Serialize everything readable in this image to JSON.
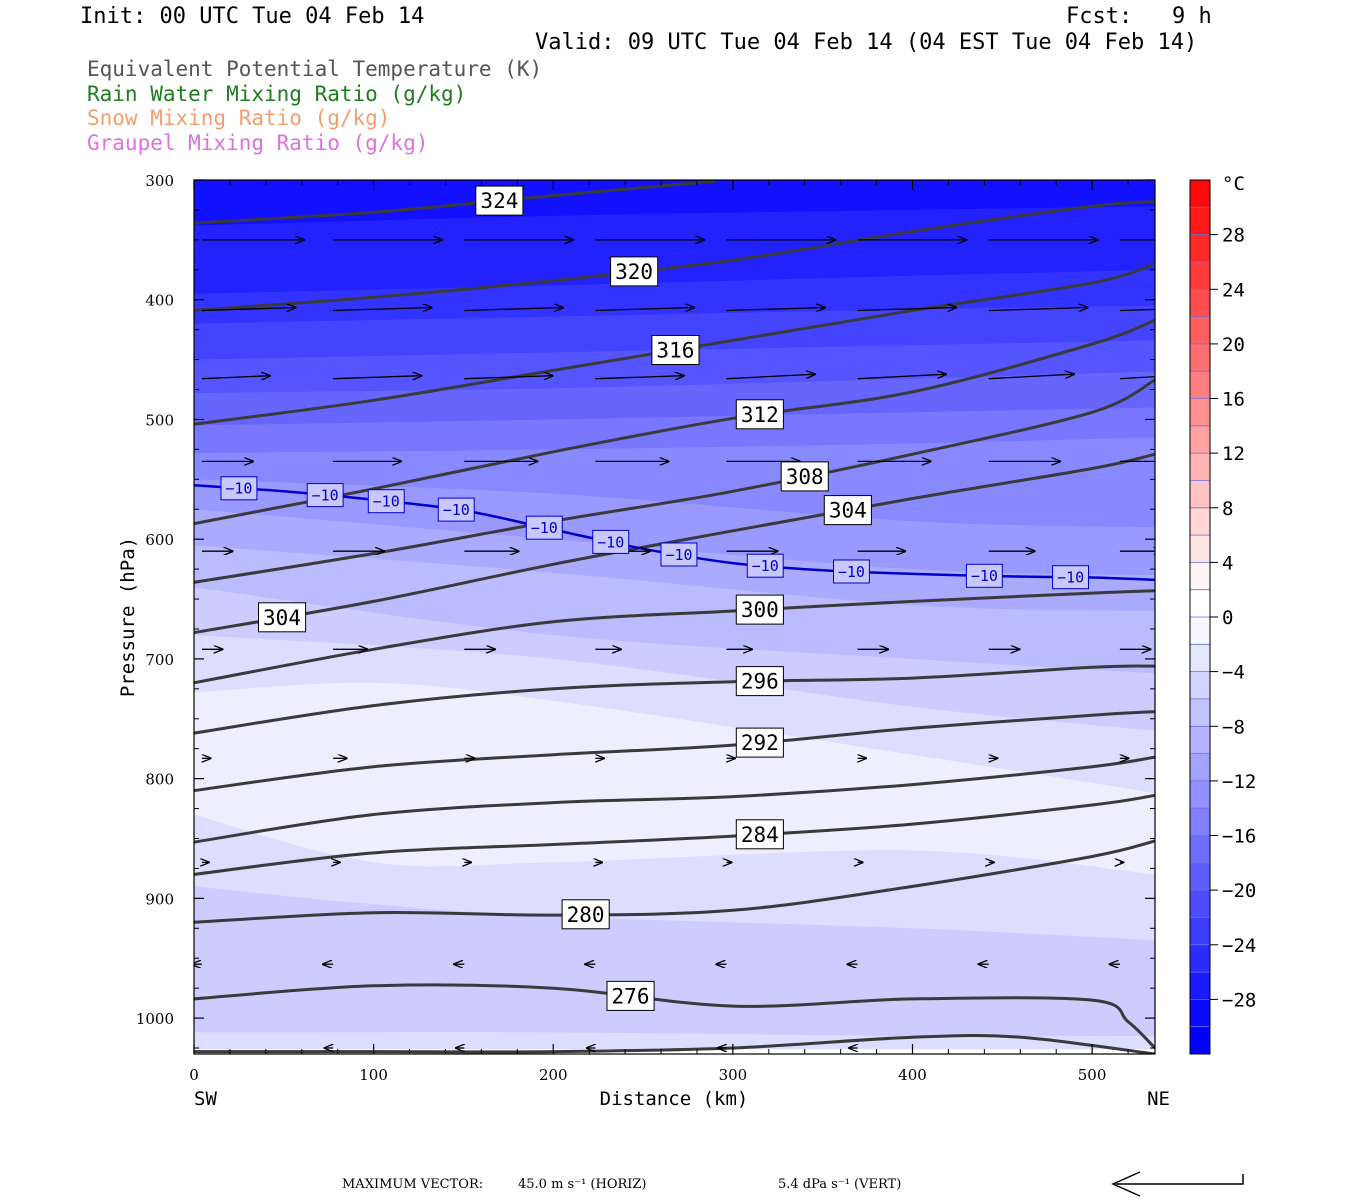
{
  "header": {
    "init": "Init: 00 UTC Tue 04 Feb 14",
    "fcst": "Fcst:   9 h",
    "valid": "Valid: 09 UTC Tue 04 Feb 14 (04 EST Tue 04 Feb 14)"
  },
  "legend": [
    {
      "text": "Equivalent Potential Temperature (K)",
      "color": "#555555"
    },
    {
      "text": "Rain Water Mixing Ratio (g/kg)",
      "color": "#1e7d1e"
    },
    {
      "text": "Snow Mixing Ratio (g/kg)",
      "color": "#f0a070"
    },
    {
      "text": "Graupel Mixing Ratio (g/kg)",
      "color": "#e070e0"
    }
  ],
  "footer": {
    "max_vector_label": "MAXIMUM VECTOR:",
    "horiz": "45.0 m s⁻¹ (HORIZ)",
    "vert": "5.4 dPa s⁻¹ (VERT)"
  },
  "chart_data": {
    "type": "contour cross-section",
    "xlabel": "Distance (km)",
    "ylabel": "Pressure (hPa)",
    "x_ticks": [
      0,
      100,
      200,
      300,
      400,
      500
    ],
    "xlim": [
      0,
      535
    ],
    "x_end_labels": {
      "left": "SW",
      "right": "NE"
    },
    "y_ticks": [
      300,
      400,
      500,
      600,
      700,
      800,
      900,
      1000
    ],
    "ylim": [
      300,
      1030
    ],
    "y_scale": "linear",
    "colorbar": {
      "unit": "°C",
      "tick_labels": [
        "28",
        "24",
        "20",
        "16",
        "12",
        "8",
        "4",
        "0",
        "−4",
        "−8",
        "−12",
        "−16",
        "−20",
        "−24",
        "−28"
      ],
      "tick_values": [
        28,
        24,
        20,
        16,
        12,
        8,
        4,
        0,
        -4,
        -8,
        -12,
        -16,
        -20,
        -24,
        -28
      ],
      "range": [
        -32,
        32
      ],
      "step": 2
    },
    "temperature_contour_minus10": {
      "label": "−10",
      "x": [
        0,
        50,
        100,
        150,
        200,
        250,
        300,
        350,
        400,
        450,
        500,
        535
      ],
      "p": [
        555,
        560,
        567,
        576,
        592,
        608,
        620,
        626,
        629,
        631,
        632,
        634
      ],
      "label_x": [
        25,
        73,
        107,
        146,
        195,
        232,
        270,
        318,
        366,
        440,
        488
      ]
    },
    "theta_e_contours": [
      {
        "value": 324,
        "x": [
          0,
          100,
          200,
          290
        ],
        "p": [
          336,
          327,
          313,
          301
        ],
        "label_x": [
          170
        ]
      },
      {
        "value": 320,
        "x": [
          0,
          100,
          200,
          300,
          400,
          500,
          535
        ],
        "p": [
          409,
          398,
          384,
          367,
          343,
          322,
          318
        ],
        "label_x": [
          245
        ]
      },
      {
        "value": 316,
        "x": [
          0,
          100,
          200,
          300,
          400,
          500,
          535
        ],
        "p": [
          504,
          484,
          459,
          434,
          409,
          386,
          370
        ],
        "label_x": [
          268
        ]
      },
      {
        "value": 312,
        "x": [
          0,
          100,
          200,
          300,
          400,
          500,
          535
        ],
        "p": [
          587,
          558,
          527,
          499,
          477,
          437,
          417
        ],
        "label_x": [
          315
        ]
      },
      {
        "value": 308,
        "x": [
          0,
          100,
          200,
          300,
          400,
          500,
          535
        ],
        "p": [
          636,
          612,
          585,
          560,
          529,
          494,
          467
        ],
        "label_x": [
          340
        ]
      },
      {
        "value": 304,
        "x": [
          0,
          100,
          200,
          300,
          400,
          500,
          535
        ],
        "p": [
          678,
          652,
          621,
          593,
          566,
          541,
          529
        ],
        "label_x": [
          49,
          364
        ]
      },
      {
        "value": 300,
        "x": [
          0,
          100,
          200,
          300,
          400,
          500,
          535
        ],
        "p": [
          720,
          692,
          669,
          660,
          652,
          645,
          643
        ],
        "label_x": [
          315
        ]
      },
      {
        "value": 296,
        "x": [
          0,
          100,
          200,
          300,
          400,
          500,
          535
        ],
        "p": [
          762,
          739,
          725,
          719,
          716,
          707,
          706
        ],
        "label_x": [
          315
        ]
      },
      {
        "value": 292,
        "x": [
          0,
          100,
          200,
          300,
          400,
          500,
          535
        ],
        "p": [
          810,
          790,
          780,
          772,
          758,
          747,
          744
        ],
        "label_x": [
          315
        ]
      },
      {
        "value": 288,
        "x": [
          0,
          100,
          200,
          300,
          400,
          500,
          535
        ],
        "p": [
          853,
          830,
          820,
          815,
          805,
          790,
          782
        ],
        "label_x": []
      },
      {
        "value": 284,
        "x": [
          0,
          100,
          200,
          300,
          400,
          500,
          535
        ],
        "p": [
          880,
          862,
          855,
          848,
          838,
          822,
          814
        ],
        "label_x": [
          315
        ]
      },
      {
        "value": 280,
        "x": [
          0,
          100,
          200,
          300,
          400,
          500,
          535
        ],
        "p": [
          920,
          912,
          914,
          910,
          890,
          865,
          852
        ],
        "label_x": [
          218
        ]
      },
      {
        "value": 276,
        "x": [
          0,
          100,
          200,
          300,
          400,
          500,
          520,
          535
        ],
        "p": [
          984,
          973,
          975,
          990,
          984,
          985,
          1003,
          1025
        ],
        "label_x": [
          243
        ]
      },
      {
        "value": 272,
        "x": [
          0,
          100,
          200,
          300,
          400,
          460,
          535
        ],
        "p": [
          1028,
          1028,
          1028,
          1025,
          1016,
          1016,
          1030
        ],
        "label_x": []
      }
    ],
    "wind_vectors": [
      {
        "p": 350,
        "x": [
          0,
          73,
          146,
          219,
          292,
          365,
          438,
          511
        ],
        "u": [
          60,
          64,
          64,
          64,
          64,
          64,
          64,
          60
        ],
        "w": [
          0,
          0,
          0,
          0,
          0,
          0,
          0,
          0
        ]
      },
      {
        "p": 409,
        "x": [
          0,
          73,
          146,
          219,
          292,
          365,
          438,
          511
        ],
        "u": [
          55,
          58,
          58,
          58,
          58,
          58,
          58,
          55
        ],
        "w": [
          2,
          2,
          2,
          2,
          2,
          2,
          2,
          2
        ]
      },
      {
        "p": 466,
        "x": [
          0,
          73,
          146,
          219,
          292,
          365,
          438,
          511
        ],
        "u": [
          40,
          52,
          52,
          52,
          52,
          52,
          50,
          45
        ],
        "w": [
          2,
          2,
          2,
          2,
          3,
          3,
          3,
          3
        ]
      },
      {
        "p": 535,
        "x": [
          0,
          73,
          146,
          219,
          292,
          365,
          438,
          511
        ],
        "u": [
          30,
          40,
          43,
          43,
          43,
          43,
          42,
          40
        ],
        "w": [
          0,
          0,
          0,
          0,
          0,
          0,
          0,
          0
        ]
      },
      {
        "p": 610,
        "x": [
          0,
          73,
          146,
          219,
          292,
          365,
          438,
          511
        ],
        "u": [
          18,
          30,
          32,
          32,
          30,
          28,
          27,
          25
        ],
        "w": [
          0,
          0,
          0,
          0,
          0,
          0,
          0,
          0
        ]
      },
      {
        "p": 692,
        "x": [
          0,
          73,
          146,
          219,
          292,
          365,
          438,
          511
        ],
        "u": [
          12,
          20,
          18,
          15,
          15,
          18,
          18,
          18
        ],
        "w": [
          0,
          0,
          0,
          0,
          0,
          0,
          0,
          0
        ]
      },
      {
        "p": 783,
        "x": [
          0,
          73,
          146,
          219,
          292,
          365,
          438,
          511
        ],
        "u": [
          5,
          8,
          6,
          5,
          5,
          5,
          5,
          5
        ],
        "w": [
          0,
          0,
          0,
          0,
          0,
          0,
          0,
          0
        ]
      },
      {
        "p": 870,
        "x": [
          0,
          73,
          146,
          219,
          292,
          365,
          438,
          511
        ],
        "u": [
          4,
          4,
          4,
          4,
          3,
          3,
          3,
          2
        ],
        "w": [
          0,
          0,
          0,
          0,
          0,
          0,
          0,
          0
        ]
      },
      {
        "p": 955,
        "x": [
          0,
          73,
          146,
          219,
          292,
          365,
          438,
          511
        ],
        "u": [
          -6,
          -6,
          -6,
          -6,
          -6,
          -6,
          -6,
          -6
        ],
        "w": [
          0,
          0,
          0,
          0,
          0,
          0,
          0,
          0
        ]
      },
      {
        "p": 1025,
        "x": [
          73,
          146,
          219,
          292,
          365
        ],
        "u": [
          -5,
          -5,
          -5,
          -5,
          -5
        ],
        "w": [
          0,
          0,
          0,
          0,
          0
        ]
      }
    ],
    "temperature_bands": [
      {
        "temp": -28,
        "x": [
          0,
          535
        ],
        "p": [
          300,
          300
        ]
      },
      {
        "temp": -26,
        "x": [
          0,
          200,
          400,
          535
        ],
        "p": [
          338,
          330,
          325,
          322
        ]
      },
      {
        "temp": -24,
        "x": [
          0,
          200,
          400,
          535
        ],
        "p": [
          395,
          388,
          380,
          375
        ]
      },
      {
        "temp": -22,
        "x": [
          0,
          200,
          400,
          535
        ],
        "p": [
          420,
          414,
          408,
          405
        ]
      },
      {
        "temp": -20,
        "x": [
          0,
          200,
          400,
          535
        ],
        "p": [
          450,
          444,
          438,
          434
        ]
      },
      {
        "temp": -18,
        "x": [
          0,
          200,
          400,
          535
        ],
        "p": [
          478,
          474,
          466,
          460
        ]
      },
      {
        "temp": -16,
        "x": [
          0,
          200,
          400,
          535
        ],
        "p": [
          505,
          500,
          494,
          490
        ]
      },
      {
        "temp": -14,
        "x": [
          0,
          200,
          400,
          535
        ],
        "p": [
          528,
          525,
          520,
          515
        ]
      },
      {
        "temp": -12,
        "x": [
          0,
          200,
          400,
          535
        ],
        "p": [
          550,
          562,
          585,
          590
        ]
      },
      {
        "temp": -10,
        "x": [
          0,
          200,
          400,
          535
        ],
        "p": [
          575,
          600,
          625,
          630
        ]
      },
      {
        "temp": -8,
        "x": [
          0,
          200,
          400,
          535
        ],
        "p": [
          605,
          628,
          655,
          660
        ]
      },
      {
        "temp": -6,
        "x": [
          0,
          200,
          400,
          535
        ],
        "p": [
          640,
          680,
          700,
          712
        ]
      },
      {
        "temp": -4,
        "x": [
          0,
          200,
          400,
          535
        ],
        "p": [
          680,
          700,
          740,
          760
        ]
      },
      {
        "temp": -2,
        "x": [
          0,
          100,
          200,
          400,
          535
        ],
        "p": [
          728,
          720,
          735,
          780,
          812
        ]
      },
      {
        "temp": -4,
        "x": [
          0,
          100,
          200,
          400,
          535
        ],
        "p": [
          830,
          870,
          870,
          860,
          880
        ]
      },
      {
        "temp": -6,
        "x": [
          0,
          100,
          200,
          400,
          535
        ],
        "p": [
          890,
          905,
          915,
          925,
          935
        ]
      },
      {
        "temp": -4,
        "x": [
          0,
          200,
          400,
          535
        ],
        "p": [
          1012,
          1012,
          1015,
          1015
        ]
      },
      {
        "temp": 0,
        "x": [
          0,
          535
        ],
        "p": [
          1026,
          1026
        ]
      }
    ]
  }
}
